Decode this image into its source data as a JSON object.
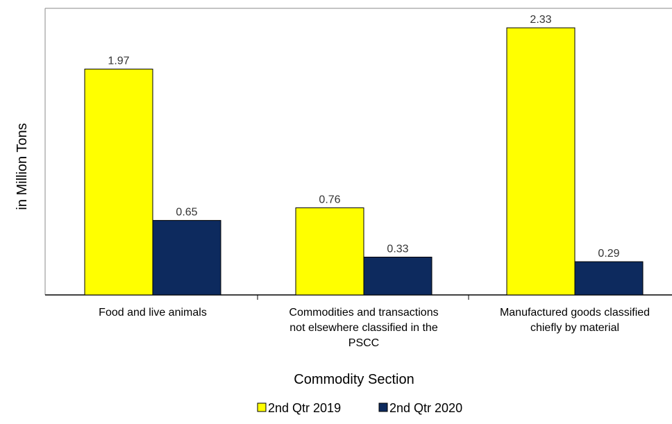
{
  "chart_data": {
    "type": "bar",
    "title": "",
    "xlabel": "Commodity Section",
    "ylabel": "in Million Tons",
    "categories": [
      [
        "Food and live animals"
      ],
      [
        "Commodities and transactions",
        "not elsewhere classified in the",
        "PSCC"
      ],
      [
        "Manufactured goods classified",
        "chiefly by material"
      ]
    ],
    "series": [
      {
        "name": "2nd Qtr 2019",
        "color": "#ffff00",
        "values": [
          1.97,
          0.76,
          2.33
        ],
        "labels": [
          "1.97",
          "0.76",
          "2.33"
        ]
      },
      {
        "name": "2nd Qtr 2020",
        "color": "#0d2a5e",
        "values": [
          0.65,
          0.33,
          0.29
        ],
        "labels": [
          "0.65",
          "0.33",
          "0.29"
        ]
      }
    ],
    "ylim": [
      0,
      2.5
    ],
    "grid": false,
    "legend_position": "bottom-center"
  }
}
